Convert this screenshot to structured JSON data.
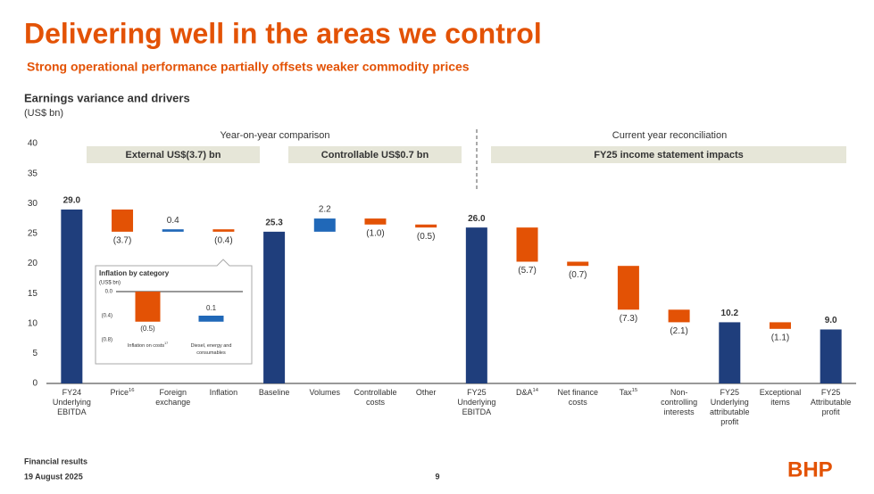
{
  "header": {
    "title": "Delivering well in the areas we control",
    "subtitle": "Strong operational performance partially offsets weaker commodity prices"
  },
  "chart_data": [
    {
      "type": "waterfall",
      "title": "Earnings variance and drivers",
      "subtitle": "(US$ bn)",
      "section_headers": [
        "Year-on-year comparison",
        "Current year reconciliation"
      ],
      "groups": [
        "External US$(3.7) bn",
        "Controllable US$0.7 bn",
        "FY25 income statement impacts"
      ],
      "categories": [
        "FY24 Underlying EBITDA",
        "Price",
        "Foreign exchange",
        "Inflation",
        "Baseline",
        "Volumes",
        "Controllable costs",
        "Other",
        "FY25 Underlying EBITDA",
        "D&A",
        "Net finance costs",
        "Tax",
        "Non-controlling interests",
        "FY25 Underlying attributable profit",
        "Exceptional items",
        "FY25 Attributable profit"
      ],
      "category_notes": [
        null,
        "16",
        null,
        null,
        null,
        null,
        null,
        null,
        null,
        "14",
        null,
        "15",
        null,
        null,
        null,
        null
      ],
      "values": [
        29.0,
        -3.7,
        0.4,
        -0.4,
        25.3,
        2.2,
        -1.0,
        -0.5,
        26.0,
        -5.7,
        -0.7,
        -7.3,
        -2.1,
        10.2,
        -1.1,
        9.0
      ],
      "value_labels": [
        "29.0",
        "(3.7)",
        "0.4",
        "(0.4)",
        "25.3",
        "2.2",
        "(1.0)",
        "(0.5)",
        "26.0",
        "(5.7)",
        "(0.7)",
        "(7.3)",
        "(2.1)",
        "10.2",
        "(1.1)",
        "9.0"
      ],
      "is_total": [
        true,
        false,
        false,
        false,
        true,
        false,
        false,
        false,
        true,
        false,
        false,
        false,
        false,
        true,
        false,
        true
      ],
      "colors": {
        "total": "#1f3e7c",
        "increase": "#2068b8",
        "decrease": "#e35205"
      },
      "ylim": [
        0,
        40
      ],
      "yticks": [
        0,
        5,
        10,
        15,
        20,
        25,
        30,
        35,
        40
      ]
    },
    {
      "type": "waterfall",
      "title": "Inflation by category",
      "subtitle": "(US$ bn)",
      "categories": [
        "Inflation on costs",
        "Diesel, energy and consumables"
      ],
      "category_notes": [
        "17",
        null
      ],
      "values": [
        -0.5,
        0.1
      ],
      "value_labels": [
        "(0.5)",
        "0.1"
      ],
      "is_total": [
        false,
        false
      ],
      "colors": {
        "total": "#1f3e7c",
        "increase": "#2068b8",
        "decrease": "#e35205"
      },
      "ylim": [
        -0.8,
        0
      ],
      "yticks": [
        {
          "value": 0,
          "label": "0.0"
        },
        {
          "value": -0.4,
          "label": "(0.4)"
        },
        {
          "value": -0.8,
          "label": "(0.8)"
        }
      ]
    }
  ],
  "footer": {
    "section": "Financial results",
    "date": "19 August 2025",
    "page": "9",
    "logo": "BHP"
  }
}
